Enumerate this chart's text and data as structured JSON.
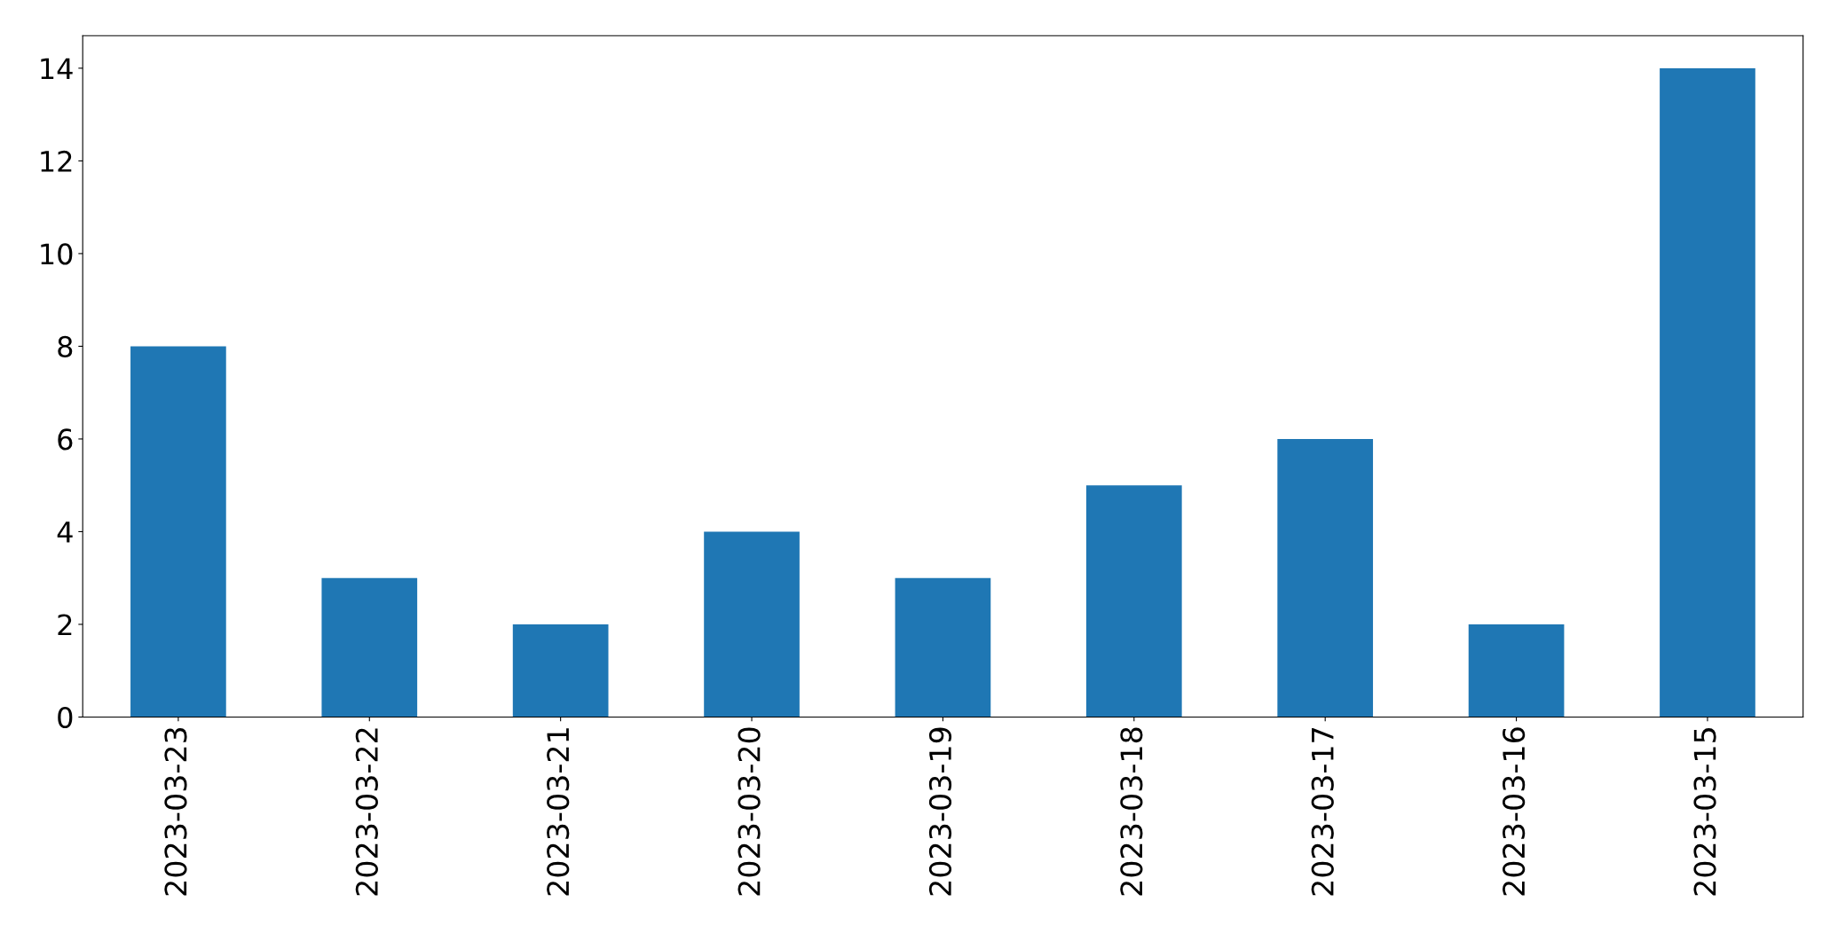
{
  "chart_data": {
    "type": "bar",
    "categories": [
      "2023-03-23",
      "2023-03-22",
      "2023-03-21",
      "2023-03-20",
      "2023-03-19",
      "2023-03-18",
      "2023-03-17",
      "2023-03-16",
      "2023-03-15"
    ],
    "values": [
      8,
      3,
      2,
      4,
      3,
      5,
      6,
      2,
      14
    ],
    "color": "#1f77b4",
    "ylim": [
      0,
      14.7
    ],
    "yticks": [
      0,
      2,
      4,
      6,
      8,
      10,
      12,
      14
    ],
    "grid": false
  }
}
